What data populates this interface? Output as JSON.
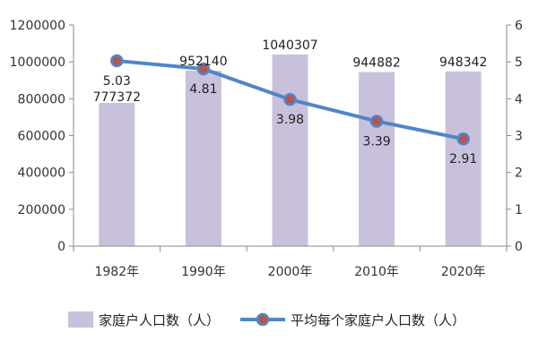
{
  "chart_data": {
    "type": "bar",
    "categories": [
      "1982年",
      "1990年",
      "2000年",
      "2010年",
      "2020年"
    ],
    "series": [
      {
        "name": "家庭户人口数（人）",
        "type": "bar",
        "axis": "left",
        "color": "#c9c0db",
        "values": [
          777372,
          952140,
          1040307,
          944882,
          948342
        ],
        "labels": [
          "777372",
          "952140",
          "1040307",
          "944882",
          "948342"
        ]
      },
      {
        "name": "平均每个家庭户人口数（人）",
        "type": "line",
        "axis": "right",
        "color": "#4f86c8",
        "marker_color": "#b85450",
        "values": [
          5.03,
          4.81,
          3.98,
          3.39,
          2.91
        ],
        "labels": [
          "5.03",
          "4.81",
          "3.98",
          "3.39",
          "2.91"
        ]
      }
    ],
    "y_left": {
      "range": [
        0,
        1200000
      ],
      "ticks": [
        "0",
        "200000",
        "400000",
        "600000",
        "800000",
        "1000000",
        "1200000"
      ]
    },
    "y_right": {
      "range": [
        0,
        6
      ],
      "ticks": [
        "0",
        "1",
        "2",
        "3",
        "4",
        "5",
        "6"
      ]
    },
    "grid": false,
    "legend_position": "bottom"
  }
}
